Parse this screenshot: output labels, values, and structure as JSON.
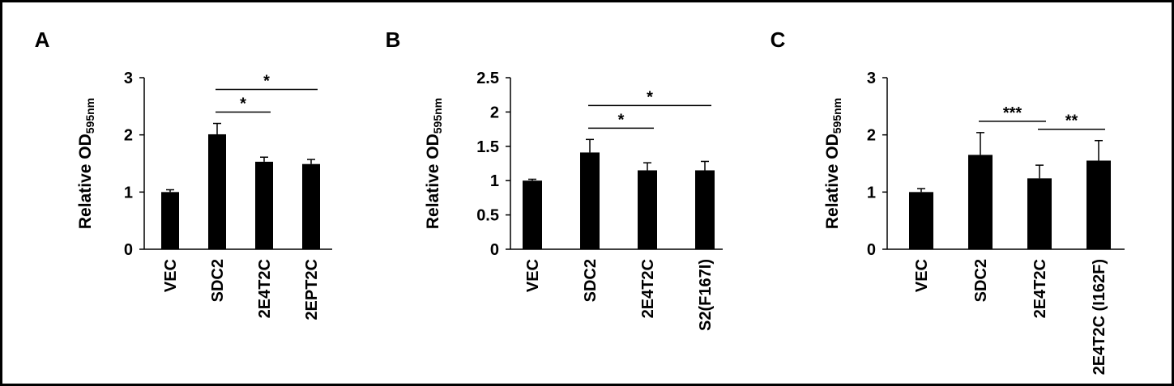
{
  "chart_data": [
    {
      "type": "bar",
      "panel": "A",
      "ylabel": "Relative OD",
      "ylabel_subscript": "595nm",
      "categories": [
        "VEC",
        "SDC2",
        "2E4T2C",
        "2EPT2C"
      ],
      "values": [
        1.0,
        2.01,
        1.53,
        1.49
      ],
      "errors": [
        0.04,
        0.19,
        0.08,
        0.08
      ],
      "color": "#000000",
      "ylim": [
        0,
        3
      ],
      "yticks": [
        0,
        1,
        2,
        3
      ],
      "significance": [
        {
          "between": [
            "SDC2",
            "2E4T2C"
          ],
          "label": "*"
        },
        {
          "between": [
            "SDC2",
            "2EPT2C"
          ],
          "label": "*"
        }
      ]
    },
    {
      "type": "bar",
      "panel": "B",
      "ylabel": "Relative OD",
      "ylabel_subscript": "595nm",
      "categories": [
        "VEC",
        "SDC2",
        "2E4T2C",
        "S2(F167I)"
      ],
      "values": [
        1.0,
        1.41,
        1.15,
        1.15
      ],
      "errors": [
        0.02,
        0.19,
        0.11,
        0.13
      ],
      "color": "#000000",
      "ylim": [
        0,
        2.5
      ],
      "yticks": [
        0,
        0.5,
        1,
        1.5,
        2,
        2.5
      ],
      "significance": [
        {
          "between": [
            "SDC2",
            "2E4T2C"
          ],
          "label": "*"
        },
        {
          "between": [
            "SDC2",
            "S2(F167I)"
          ],
          "label": "*"
        }
      ]
    },
    {
      "type": "bar",
      "panel": "C",
      "ylabel": "Relative OD",
      "ylabel_subscript": "595nm",
      "categories": [
        "VEC",
        "SDC2",
        "2E4T2C",
        "2E4T2C (I162F)"
      ],
      "values": [
        1.0,
        1.65,
        1.24,
        1.55
      ],
      "errors": [
        0.06,
        0.39,
        0.23,
        0.35
      ],
      "color": "#000000",
      "ylim": [
        0,
        3
      ],
      "yticks": [
        0,
        1,
        2,
        3
      ],
      "significance": [
        {
          "between": [
            "SDC2",
            "2E4T2C"
          ],
          "label": "***"
        },
        {
          "between": [
            "2E4T2C",
            "2E4T2C (I162F)"
          ],
          "label": "**"
        }
      ]
    }
  ]
}
